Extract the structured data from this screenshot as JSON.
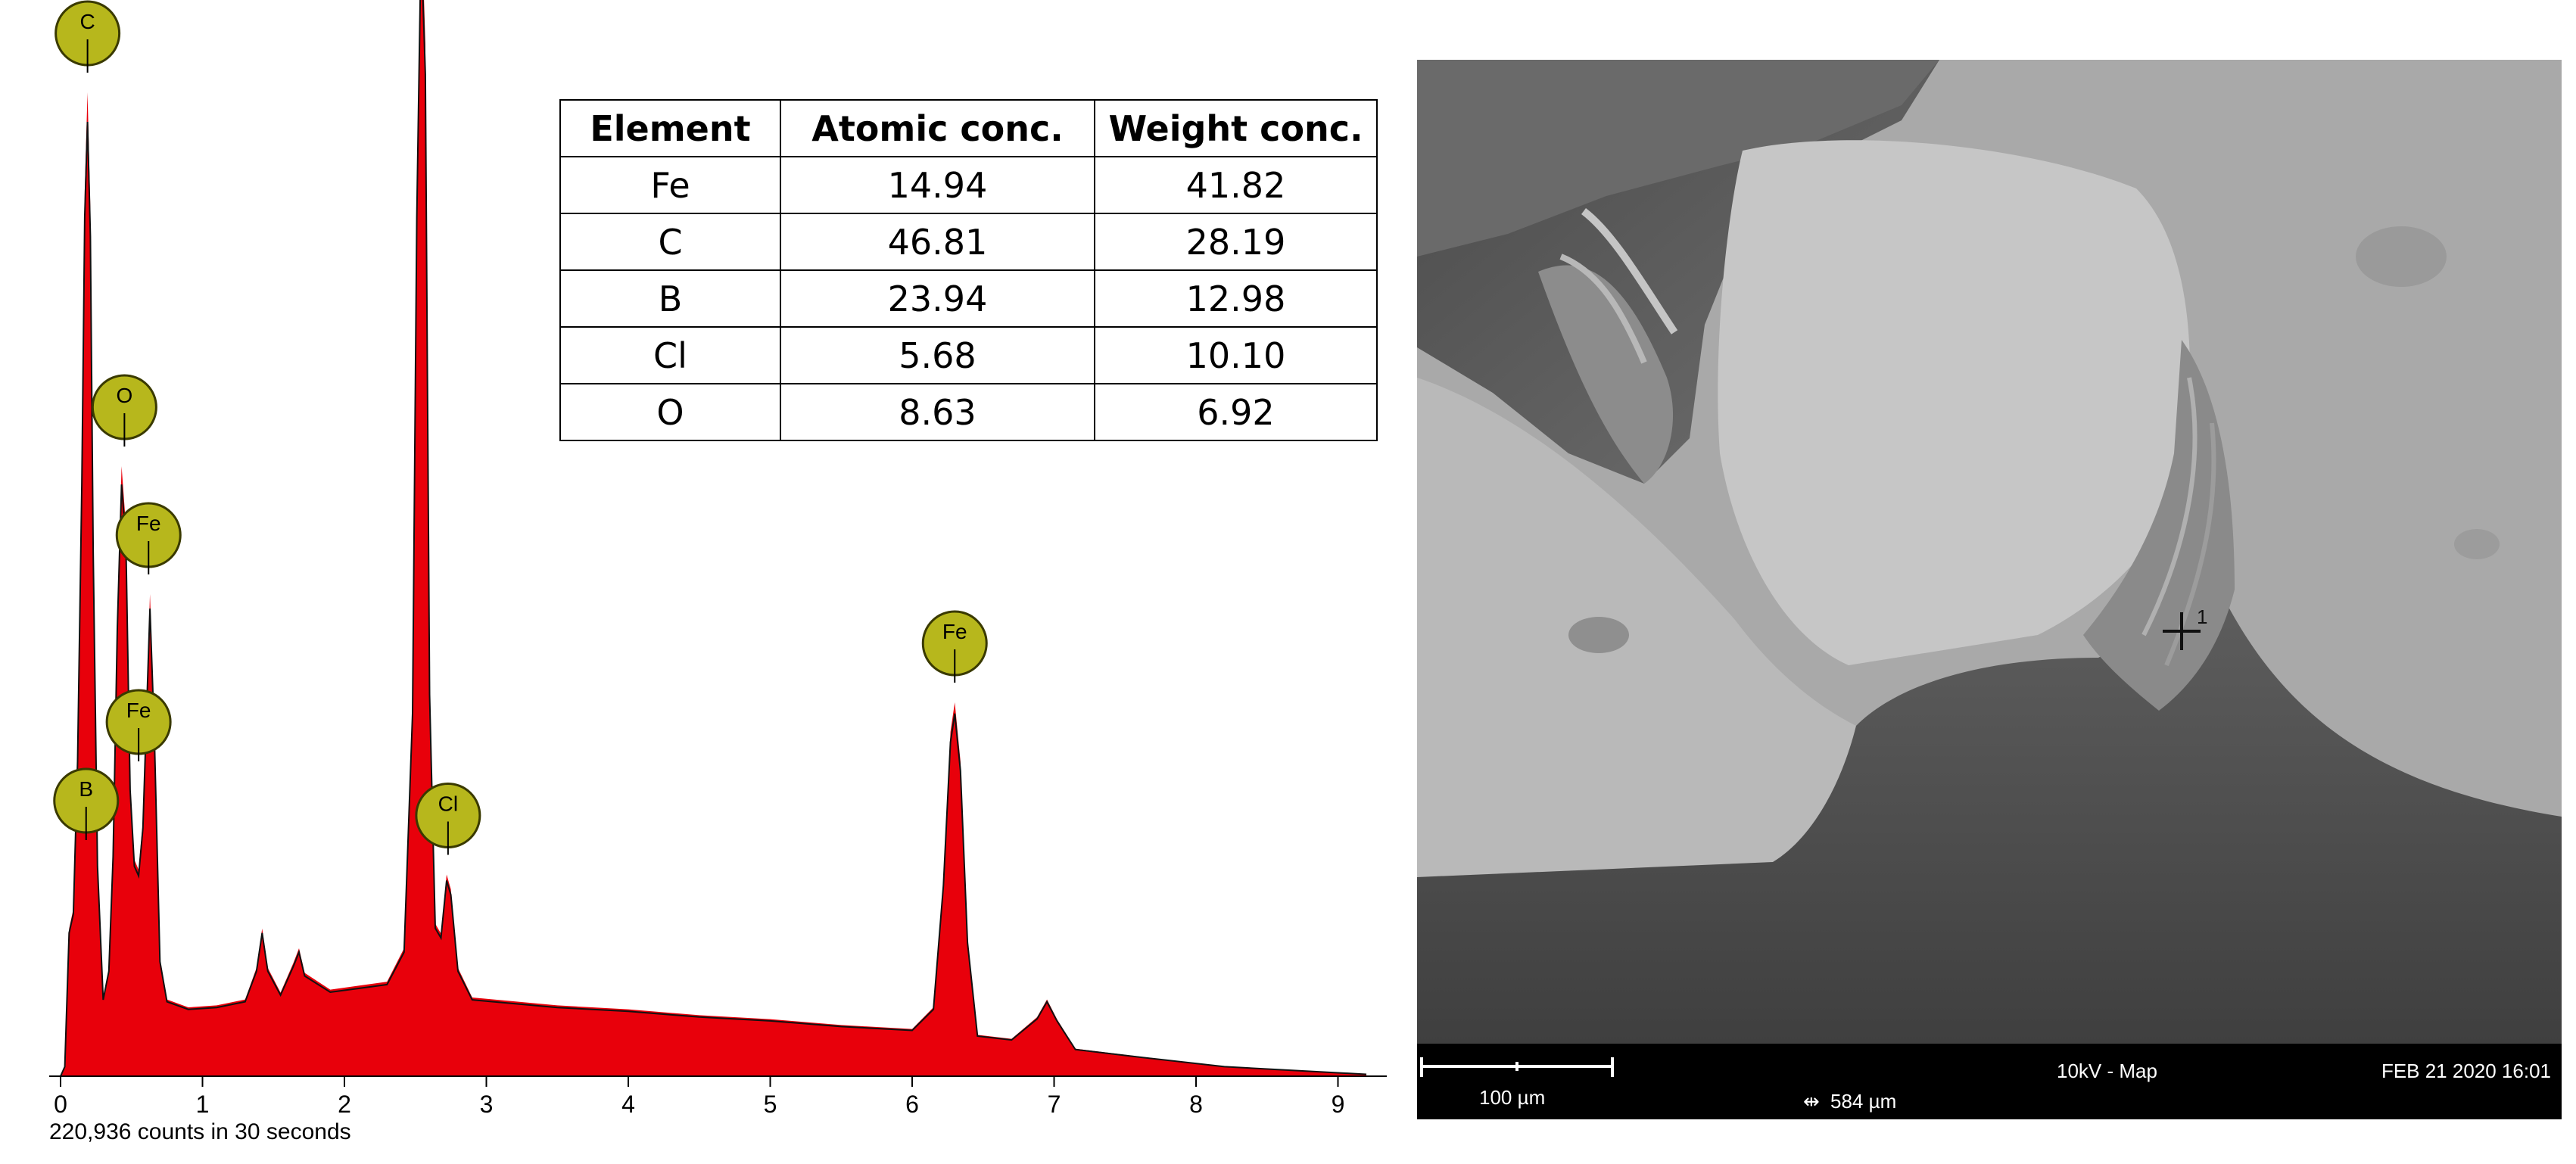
{
  "chart_data": {
    "type": "area",
    "xlim": [
      0,
      9.2
    ],
    "xticks": [
      0,
      1,
      2,
      3,
      4,
      5,
      6,
      7,
      8,
      9
    ],
    "ylim": [
      0,
      1000
    ],
    "spectrum_points": [
      [
        0.0,
        0
      ],
      [
        0.03,
        10
      ],
      [
        0.06,
        150
      ],
      [
        0.09,
        170
      ],
      [
        0.12,
        330
      ],
      [
        0.15,
        620
      ],
      [
        0.17,
        900
      ],
      [
        0.19,
        1000
      ],
      [
        0.21,
        880
      ],
      [
        0.23,
        550
      ],
      [
        0.26,
        220
      ],
      [
        0.3,
        80
      ],
      [
        0.34,
        110
      ],
      [
        0.37,
        230
      ],
      [
        0.4,
        470
      ],
      [
        0.43,
        620
      ],
      [
        0.46,
        560
      ],
      [
        0.49,
        300
      ],
      [
        0.52,
        220
      ],
      [
        0.55,
        210
      ],
      [
        0.58,
        260
      ],
      [
        0.61,
        400
      ],
      [
        0.63,
        490
      ],
      [
        0.66,
        360
      ],
      [
        0.7,
        120
      ],
      [
        0.75,
        78
      ],
      [
        0.9,
        70
      ],
      [
        1.1,
        72
      ],
      [
        1.3,
        78
      ],
      [
        1.38,
        110
      ],
      [
        1.42,
        150
      ],
      [
        1.46,
        110
      ],
      [
        1.55,
        85
      ],
      [
        1.64,
        115
      ],
      [
        1.68,
        130
      ],
      [
        1.72,
        105
      ],
      [
        1.9,
        88
      ],
      [
        2.1,
        92
      ],
      [
        2.3,
        96
      ],
      [
        2.42,
        130
      ],
      [
        2.48,
        380
      ],
      [
        2.51,
        900
      ],
      [
        2.54,
        1190
      ],
      [
        2.57,
        1050
      ],
      [
        2.6,
        400
      ],
      [
        2.64,
        155
      ],
      [
        2.68,
        145
      ],
      [
        2.72,
        205
      ],
      [
        2.75,
        190
      ],
      [
        2.8,
        110
      ],
      [
        2.9,
        80
      ],
      [
        3.5,
        72
      ],
      [
        4.0,
        68
      ],
      [
        4.5,
        62
      ],
      [
        5.0,
        58
      ],
      [
        5.5,
        52
      ],
      [
        6.0,
        48
      ],
      [
        6.15,
        70
      ],
      [
        6.22,
        200
      ],
      [
        6.27,
        350
      ],
      [
        6.3,
        380
      ],
      [
        6.34,
        320
      ],
      [
        6.39,
        140
      ],
      [
        6.46,
        42
      ],
      [
        6.7,
        38
      ],
      [
        6.88,
        60
      ],
      [
        6.95,
        78
      ],
      [
        7.02,
        58
      ],
      [
        7.15,
        28
      ],
      [
        7.6,
        20
      ],
      [
        8.2,
        10
      ],
      [
        9.2,
        2
      ]
    ],
    "peak_labels": [
      {
        "element": "B",
        "x": 0.18,
        "y": 220
      },
      {
        "element": "C",
        "x": 0.19,
        "y": 1000
      },
      {
        "element": "O",
        "x": 0.45,
        "y": 620
      },
      {
        "element": "Fe",
        "x": 0.62,
        "y": 490
      },
      {
        "element": "Fe",
        "x": 0.55,
        "y": 300
      },
      {
        "element": "Cl",
        "x": 2.55,
        "y": 1190
      },
      {
        "element": "Cl",
        "x": 2.73,
        "y": 205
      },
      {
        "element": "Fe",
        "x": 6.3,
        "y": 380
      }
    ],
    "caption": "220,936 counts in 30 seconds",
    "colors": {
      "fill": "#e8000b",
      "outline": "#111111",
      "marker": "#b7b71c",
      "marker_border": "#3a3a00"
    }
  },
  "table": {
    "headers": [
      "Element",
      "Atomic conc.",
      "Weight conc."
    ],
    "rows": [
      [
        "Fe",
        "14.94",
        "41.82"
      ],
      [
        "C",
        "46.81",
        "28.19"
      ],
      [
        "B",
        "23.94",
        "12.98"
      ],
      [
        "Cl",
        "5.68",
        "10.10"
      ],
      [
        "O",
        "8.63",
        "6.92"
      ]
    ]
  },
  "sem_image": {
    "scale_label": "100 µm",
    "field_width": "584 µm",
    "mode": "10kV - Map",
    "date": "FEB 21 2020 16:01",
    "point_label": "1"
  }
}
